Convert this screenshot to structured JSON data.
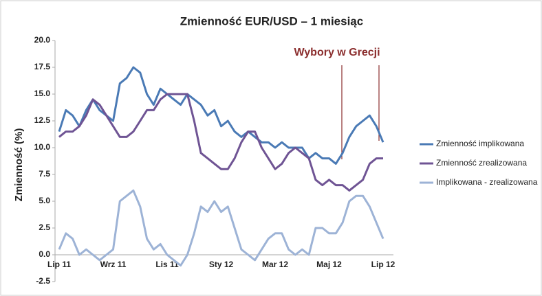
{
  "chart_data": {
    "type": "line",
    "title": "Zmienność EUR/USD – 1 miesiąc",
    "y_label": "Zmienność (%)",
    "annotation": "Wybory w Grecji",
    "categories": [
      "Lip 11",
      null,
      null,
      null,
      null,
      null,
      null,
      null,
      "Wrz 11",
      null,
      null,
      null,
      null,
      null,
      null,
      null,
      "Lis 11",
      null,
      null,
      null,
      null,
      null,
      null,
      null,
      "Sty 12",
      null,
      null,
      null,
      null,
      null,
      null,
      null,
      "Mar 12",
      null,
      null,
      null,
      null,
      null,
      null,
      null,
      "Maj 12",
      null,
      null,
      null,
      null,
      null,
      null,
      null,
      "Lip 12"
    ],
    "series": [
      {
        "name": "Zmienność implikowana",
        "color": "#4a7ab5",
        "values": [
          11.5,
          13.5,
          13,
          12,
          13.5,
          14.5,
          13.5,
          13,
          12.5,
          16,
          16.5,
          17.5,
          17,
          15,
          14,
          15.5,
          15,
          14.5,
          14,
          15,
          14.5,
          14,
          13,
          13.5,
          12,
          12.5,
          11.5,
          11,
          11.5,
          11,
          10.5,
          10.5,
          10,
          10.5,
          10,
          10,
          10,
          9,
          9.5,
          9,
          9,
          8.5,
          9.5,
          11,
          12,
          12.5,
          13,
          12,
          10.5
        ]
      },
      {
        "name": "Zmienność zrealizowana",
        "color": "#6f5494",
        "values": [
          11,
          11.5,
          11.5,
          12,
          13,
          14.5,
          14,
          13,
          12,
          11,
          11,
          11.5,
          12.5,
          13.5,
          13.5,
          14.5,
          15,
          15,
          15,
          15,
          12.5,
          9.5,
          9,
          8.5,
          8,
          8,
          9,
          10.5,
          11.5,
          11.5,
          10,
          9,
          8,
          8.5,
          9.5,
          10,
          9.5,
          9,
          7,
          6.5,
          7,
          6.5,
          6.5,
          6,
          6.5,
          7,
          8.5,
          9,
          9
        ]
      },
      {
        "name": "Implikowana - zrealizowana",
        "color": "#9db3d6",
        "values": [
          0.5,
          2,
          1.5,
          0,
          0.5,
          0,
          -0.5,
          0,
          0.5,
          5,
          5.5,
          6,
          4.5,
          1.5,
          0.5,
          1,
          0,
          -0.5,
          -1,
          0,
          2,
          4.5,
          4,
          5,
          4,
          4.5,
          2.5,
          0.5,
          0,
          -0.5,
          0.5,
          1.5,
          2,
          2,
          0.5,
          0,
          0.5,
          0,
          2.5,
          2.5,
          2,
          2,
          3,
          5,
          5.5,
          5.5,
          4.5,
          3,
          1.5
        ]
      }
    ],
    "ylim": [
      -2.5,
      20
    ],
    "yticks": [
      -2.5,
      {
        "value": 0,
        "label": "0.0"
      },
      2.5,
      {
        "value": 5,
        "label": "5.0"
      },
      7.5,
      {
        "value": 10,
        "label": "10.0"
      },
      12.5,
      {
        "value": 15,
        "label": "15.0"
      },
      17.5,
      {
        "value": 20,
        "label": "20.0"
      }
    ],
    "grid": false
  }
}
